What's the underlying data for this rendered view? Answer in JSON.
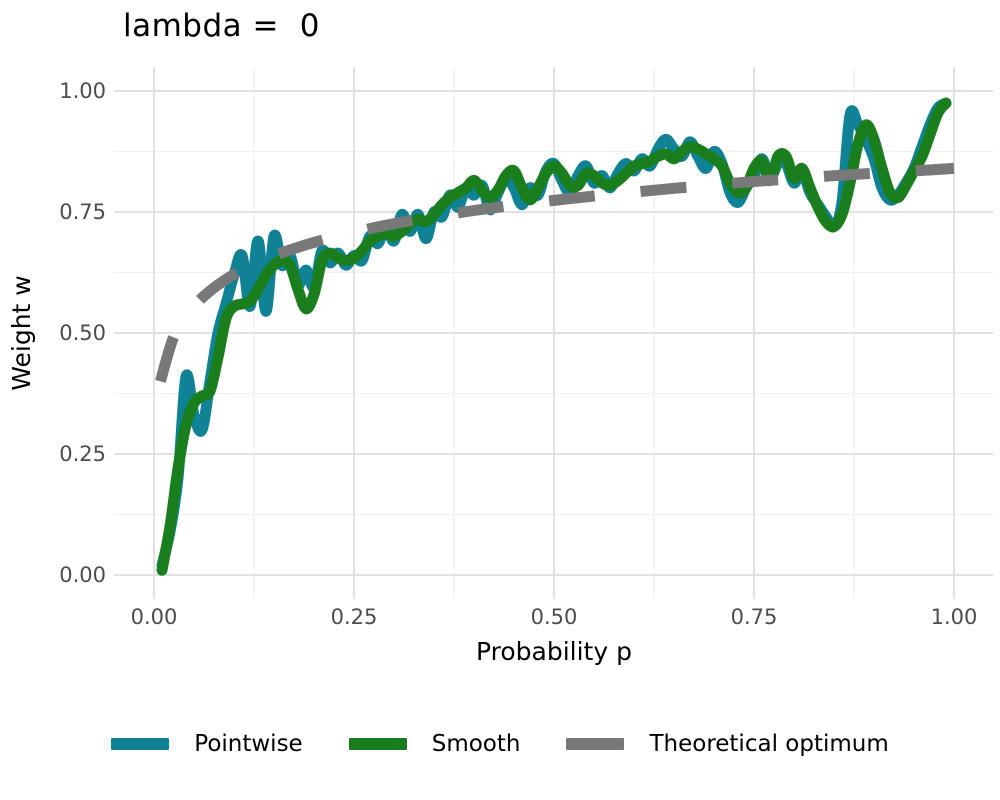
{
  "title": "lambda =  0",
  "colors": {
    "pointwise": "#0f8295",
    "smooth": "#1b7e1d",
    "theoretical": "#787878",
    "grid_major": "#e2e2e2",
    "grid_minor": "#f0f0f0",
    "tick_text": "#4d4d4d",
    "axis_title_text": "#000000",
    "background": "#ffffff"
  },
  "chart_data": {
    "type": "line",
    "title": "lambda =  0",
    "xlabel": "Probability p",
    "ylabel": "Weight w",
    "xlim": [
      0,
      1
    ],
    "ylim": [
      0,
      1
    ],
    "grid": "major+minor",
    "legend_position": "bottom",
    "x_ticks": [
      0,
      0.25,
      0.5,
      0.75,
      1.0
    ],
    "x_tick_labels": [
      "0.00",
      "0.25",
      "0.50",
      "0.75",
      "1.00"
    ],
    "x_minor_ticks": [
      0.125,
      0.375,
      0.625,
      0.875
    ],
    "y_ticks": [
      0,
      0.25,
      0.5,
      0.75,
      1.0
    ],
    "y_tick_labels": [
      "0.00",
      "0.25",
      "0.50",
      "0.75",
      "1.00"
    ],
    "y_minor_ticks": [
      0.125,
      0.375,
      0.625,
      0.875
    ],
    "series": [
      {
        "name": "Pointwise",
        "style": "solid",
        "color": "#0f8295",
        "x": [
          0.01,
          0.02,
          0.03,
          0.04,
          0.05,
          0.06,
          0.07,
          0.08,
          0.09,
          0.1,
          0.11,
          0.12,
          0.13,
          0.14,
          0.15,
          0.16,
          0.17,
          0.18,
          0.19,
          0.2,
          0.21,
          0.22,
          0.23,
          0.24,
          0.25,
          0.26,
          0.27,
          0.28,
          0.29,
          0.3,
          0.31,
          0.32,
          0.33,
          0.34,
          0.35,
          0.36,
          0.37,
          0.38,
          0.39,
          0.4,
          0.41,
          0.42,
          0.43,
          0.44,
          0.45,
          0.46,
          0.47,
          0.48,
          0.49,
          0.5,
          0.51,
          0.52,
          0.53,
          0.54,
          0.55,
          0.56,
          0.57,
          0.58,
          0.59,
          0.6,
          0.61,
          0.62,
          0.63,
          0.64,
          0.65,
          0.66,
          0.67,
          0.68,
          0.69,
          0.7,
          0.71,
          0.72,
          0.73,
          0.74,
          0.75,
          0.76,
          0.77,
          0.78,
          0.79,
          0.8,
          0.81,
          0.82,
          0.83,
          0.84,
          0.85,
          0.86,
          0.87,
          0.88,
          0.89,
          0.9,
          0.91,
          0.92,
          0.93,
          0.94,
          0.95,
          0.96,
          0.97,
          0.98,
          0.99
        ],
        "y": [
          0.02,
          0.09,
          0.2,
          0.41,
          0.33,
          0.3,
          0.4,
          0.5,
          0.56,
          0.62,
          0.66,
          0.555,
          0.69,
          0.545,
          0.7,
          0.64,
          0.66,
          0.6,
          0.63,
          0.595,
          0.67,
          0.645,
          0.665,
          0.64,
          0.66,
          0.65,
          0.7,
          0.685,
          0.72,
          0.69,
          0.745,
          0.71,
          0.745,
          0.695,
          0.75,
          0.74,
          0.785,
          0.76,
          0.8,
          0.785,
          0.805,
          0.755,
          0.79,
          0.82,
          0.8,
          0.765,
          0.8,
          0.785,
          0.835,
          0.85,
          0.815,
          0.79,
          0.825,
          0.845,
          0.81,
          0.825,
          0.8,
          0.83,
          0.85,
          0.835,
          0.86,
          0.845,
          0.88,
          0.9,
          0.88,
          0.865,
          0.895,
          0.865,
          0.84,
          0.875,
          0.85,
          0.79,
          0.77,
          0.8,
          0.825,
          0.86,
          0.82,
          0.85,
          0.85,
          0.81,
          0.835,
          0.79,
          0.765,
          0.74,
          0.72,
          0.77,
          0.95,
          0.93,
          0.9,
          0.86,
          0.8,
          0.775,
          0.785,
          0.81,
          0.84,
          0.885,
          0.93,
          0.965,
          0.975
        ]
      },
      {
        "name": "Smooth",
        "style": "solid",
        "color": "#1b7e1d",
        "x": [
          0.01,
          0.02,
          0.03,
          0.04,
          0.05,
          0.06,
          0.07,
          0.08,
          0.09,
          0.1,
          0.11,
          0.12,
          0.13,
          0.14,
          0.15,
          0.16,
          0.17,
          0.18,
          0.19,
          0.2,
          0.21,
          0.22,
          0.23,
          0.24,
          0.25,
          0.26,
          0.27,
          0.28,
          0.29,
          0.3,
          0.31,
          0.32,
          0.33,
          0.34,
          0.35,
          0.36,
          0.37,
          0.38,
          0.39,
          0.4,
          0.41,
          0.42,
          0.43,
          0.44,
          0.45,
          0.46,
          0.47,
          0.48,
          0.49,
          0.5,
          0.51,
          0.52,
          0.53,
          0.54,
          0.55,
          0.56,
          0.57,
          0.58,
          0.59,
          0.6,
          0.61,
          0.62,
          0.63,
          0.64,
          0.65,
          0.66,
          0.67,
          0.68,
          0.69,
          0.7,
          0.71,
          0.72,
          0.73,
          0.74,
          0.75,
          0.76,
          0.77,
          0.78,
          0.79,
          0.8,
          0.81,
          0.82,
          0.83,
          0.84,
          0.85,
          0.86,
          0.87,
          0.88,
          0.89,
          0.9,
          0.91,
          0.92,
          0.93,
          0.94,
          0.95,
          0.96,
          0.97,
          0.98,
          0.99
        ],
        "y": [
          0.01,
          0.1,
          0.22,
          0.31,
          0.355,
          0.37,
          0.38,
          0.45,
          0.53,
          0.555,
          0.56,
          0.565,
          0.59,
          0.62,
          0.64,
          0.65,
          0.64,
          0.59,
          0.55,
          0.58,
          0.65,
          0.665,
          0.655,
          0.65,
          0.655,
          0.67,
          0.69,
          0.7,
          0.705,
          0.7,
          0.71,
          0.725,
          0.735,
          0.73,
          0.745,
          0.765,
          0.78,
          0.79,
          0.8,
          0.815,
          0.795,
          0.78,
          0.795,
          0.825,
          0.835,
          0.8,
          0.775,
          0.8,
          0.83,
          0.845,
          0.83,
          0.805,
          0.805,
          0.83,
          0.825,
          0.81,
          0.805,
          0.815,
          0.83,
          0.845,
          0.85,
          0.855,
          0.865,
          0.87,
          0.86,
          0.875,
          0.885,
          0.88,
          0.87,
          0.86,
          0.845,
          0.81,
          0.79,
          0.8,
          0.84,
          0.855,
          0.815,
          0.865,
          0.865,
          0.82,
          0.84,
          0.8,
          0.76,
          0.73,
          0.72,
          0.745,
          0.81,
          0.89,
          0.93,
          0.9,
          0.84,
          0.79,
          0.78,
          0.805,
          0.835,
          0.865,
          0.91,
          0.955,
          0.975
        ]
      },
      {
        "name": "Theoretical optimum",
        "style": "dashed",
        "color": "#787878",
        "x": [
          0.008,
          0.02,
          0.03,
          0.05,
          0.07,
          0.1,
          0.14,
          0.18,
          0.22,
          0.26,
          0.3,
          0.35,
          0.4,
          0.45,
          0.5,
          0.55,
          0.6,
          0.65,
          0.7,
          0.75,
          0.8,
          0.85,
          0.9,
          0.95,
          1.0
        ],
        "y": [
          0.4,
          0.47,
          0.51,
          0.555,
          0.587,
          0.621,
          0.653,
          0.677,
          0.696,
          0.712,
          0.726,
          0.74,
          0.753,
          0.764,
          0.774,
          0.783,
          0.791,
          0.799,
          0.806,
          0.813,
          0.819,
          0.825,
          0.83,
          0.835,
          0.84
        ]
      }
    ]
  },
  "legend": {
    "items": [
      {
        "label": "Pointwise"
      },
      {
        "label": "Smooth"
      },
      {
        "label": "Theoretical optimum"
      }
    ]
  }
}
